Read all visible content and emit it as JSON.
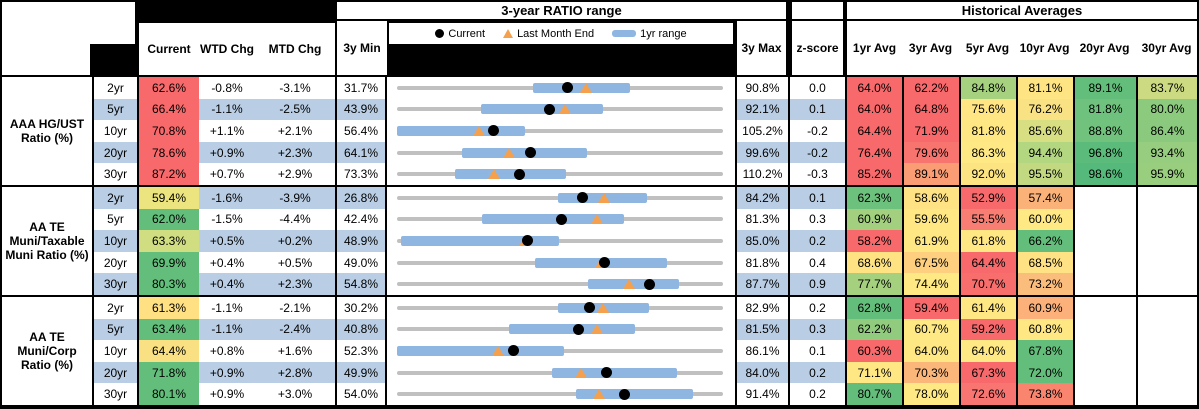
{
  "header": {
    "range_title": "3-year RATIO range",
    "hist_title": "Historical Averages",
    "columns": {
      "current": "Current",
      "wtd": "WTD Chg",
      "mtd": "MTD Chg",
      "min": "3y Min",
      "max": "3y Max",
      "z": "z-score"
    },
    "avg_columns": [
      "1yr Avg",
      "3yr Avg",
      "5yr Avg",
      "10yr Avg",
      "20yr Avg",
      "30yr Avg"
    ],
    "legend": {
      "current": "Current",
      "last_month_end": "Last Month End",
      "one_year_range": "1yr range"
    }
  },
  "colors": {
    "stripe_blue": "#B9CDE4",
    "range_bar_blue": "#8FB5E1",
    "track_gray": "#C0C0C0",
    "triangle_orange": "#F5A04D",
    "dot_black": "#000000",
    "heat_red": "#F8696B",
    "heat_yellow": "#FFE984",
    "heat_green": "#63BE7B"
  },
  "chart_data": {
    "type": "table",
    "title": "3-year RATIO range",
    "sections": [
      {
        "label": "AAA HG/UST Ratio (%)",
        "rows": [
          {
            "tenor": "2yr",
            "current": "62.6%",
            "current_bg": "#F8696B",
            "wtd": "-0.8%",
            "mtd": "-3.1%",
            "min": "31.7%",
            "max": "90.8%",
            "z": "0.0",
            "range": {
              "min": 31.7,
              "max": 90.8,
              "current": 62.6,
              "last_month_end": 65.9,
              "yr1_low": 56.3,
              "yr1_high": 73.9
            },
            "avgs": [
              {
                "v": "64.0%",
                "bg": "#F8696B"
              },
              {
                "v": "62.2%",
                "bg": "#F8696B"
              },
              {
                "v": "84.8%",
                "bg": "#A6D27F"
              },
              {
                "v": "81.1%",
                "bg": "#FFE483"
              },
              {
                "v": "89.1%",
                "bg": "#63BE7B"
              },
              {
                "v": "83.7%",
                "bg": "#CCDB81"
              }
            ]
          },
          {
            "tenor": "5yr",
            "current": "66.4%",
            "current_bg": "#F8696B",
            "wtd": "-1.1%",
            "mtd": "-2.5%",
            "min": "43.9%",
            "max": "92.1%",
            "z": "0.1",
            "range": {
              "min": 43.9,
              "max": 92.1,
              "current": 66.4,
              "last_month_end": 68.7,
              "yr1_low": 56.3,
              "yr1_high": 74.3
            },
            "avgs": [
              {
                "v": "64.0%",
                "bg": "#F8696B"
              },
              {
                "v": "64.8%",
                "bg": "#F8696B"
              },
              {
                "v": "75.6%",
                "bg": "#FFE584"
              },
              {
                "v": "76.2%",
                "bg": "#F9E283"
              },
              {
                "v": "81.8%",
                "bg": "#6EC27D"
              },
              {
                "v": "80.0%",
                "bg": "#8CCA7E"
              }
            ]
          },
          {
            "tenor": "10yr",
            "current": "70.8%",
            "current_bg": "#F8696B",
            "wtd": "+1.1%",
            "mtd": "+2.1%",
            "min": "56.4%",
            "max": "105.2%",
            "z": "-0.2",
            "range": {
              "min": 56.4,
              "max": 105.2,
              "current": 70.8,
              "last_month_end": 68.7,
              "yr1_low": 56.4,
              "yr1_high": 75.5
            },
            "avgs": [
              {
                "v": "64.4%",
                "bg": "#F8696B"
              },
              {
                "v": "71.9%",
                "bg": "#F8696B"
              },
              {
                "v": "81.8%",
                "bg": "#FFE784"
              },
              {
                "v": "85.6%",
                "bg": "#D8DE82"
              },
              {
                "v": "88.8%",
                "bg": "#70C27D"
              },
              {
                "v": "86.4%",
                "bg": "#8BCA7E"
              }
            ]
          },
          {
            "tenor": "20yr",
            "current": "78.6%",
            "current_bg": "#F8696B",
            "wtd": "+0.9%",
            "mtd": "+2.3%",
            "min": "64.1%",
            "max": "99.6%",
            "z": "-0.2",
            "range": {
              "min": 64.1,
              "max": 99.6,
              "current": 78.6,
              "last_month_end": 76.3,
              "yr1_low": 71.2,
              "yr1_high": 84.8
            },
            "avgs": [
              {
                "v": "76.4%",
                "bg": "#F8696B"
              },
              {
                "v": "79.6%",
                "bg": "#F8756F"
              },
              {
                "v": "86.3%",
                "bg": "#FFE984"
              },
              {
                "v": "94.4%",
                "bg": "#B3D680"
              },
              {
                "v": "96.8%",
                "bg": "#5BBB7A"
              },
              {
                "v": "93.4%",
                "bg": "#97CD7F"
              }
            ]
          },
          {
            "tenor": "30yr",
            "current": "87.2%",
            "current_bg": "#F8696B",
            "wtd": "+0.7%",
            "mtd": "+2.9%",
            "min": "73.3%",
            "max": "110.2%",
            "z": "-0.3",
            "range": {
              "min": 73.3,
              "max": 110.2,
              "current": 87.2,
              "last_month_end": 84.3,
              "yr1_low": 79.9,
              "yr1_high": 92.4
            },
            "avgs": [
              {
                "v": "85.2%",
                "bg": "#F8696B"
              },
              {
                "v": "89.1%",
                "bg": "#FA9D74"
              },
              {
                "v": "92.0%",
                "bg": "#FDE483"
              },
              {
                "v": "95.5%",
                "bg": "#C3D981"
              },
              {
                "v": "98.6%",
                "bg": "#54B97A"
              },
              {
                "v": "95.9%",
                "bg": "#9ACE7F"
              }
            ]
          }
        ]
      },
      {
        "label": "AA TE Muni/Taxable Muni Ratio (%)",
        "rows": [
          {
            "tenor": "2yr",
            "current": "59.4%",
            "current_bg": "#EBE47F",
            "wtd": "-1.6%",
            "mtd": "-3.9%",
            "min": "26.8%",
            "max": "84.2%",
            "z": "0.1",
            "range": {
              "min": 26.8,
              "max": 84.2,
              "current": 59.4,
              "last_month_end": 63.3,
              "yr1_low": 55.2,
              "yr1_high": 70.9
            },
            "avgs": [
              {
                "v": "62.3%",
                "bg": "#6CC17C"
              },
              {
                "v": "58.6%",
                "bg": "#FFE283"
              },
              {
                "v": "52.9%",
                "bg": "#F8696B"
              },
              {
                "v": "57.4%",
                "bg": "#FBB279"
              },
              {
                "v": "",
                "bg": "#FFFFFF"
              },
              {
                "v": "",
                "bg": "#FFFFFF"
              }
            ]
          },
          {
            "tenor": "5yr",
            "current": "62.0%",
            "current_bg": "#63BE7B",
            "wtd": "-1.5%",
            "mtd": "-4.4%",
            "min": "42.4%",
            "max": "81.3%",
            "z": "0.3",
            "range": {
              "min": 42.4,
              "max": 81.3,
              "current": 62.0,
              "last_month_end": 66.3,
              "yr1_low": 52.5,
              "yr1_high": 69.5
            },
            "avgs": [
              {
                "v": "60.9%",
                "bg": "#A2D07F"
              },
              {
                "v": "59.6%",
                "bg": "#FFE884"
              },
              {
                "v": "55.5%",
                "bg": "#F87D72"
              },
              {
                "v": "60.0%",
                "bg": "#FFE984"
              },
              {
                "v": "",
                "bg": "#FFFFFF"
              },
              {
                "v": "",
                "bg": "#FFFFFF"
              }
            ]
          },
          {
            "tenor": "10yr",
            "current": "63.3%",
            "current_bg": "#D1DD81",
            "wtd": "+0.5%",
            "mtd": "+0.2%",
            "min": "48.9%",
            "max": "85.0%",
            "z": "0.2",
            "range": {
              "min": 48.9,
              "max": 85.0,
              "current": 63.3,
              "last_month_end": 63.1,
              "yr1_low": 49.3,
              "yr1_high": 66.8
            },
            "avgs": [
              {
                "v": "58.2%",
                "bg": "#F8696B"
              },
              {
                "v": "61.9%",
                "bg": "#FFE784"
              },
              {
                "v": "61.8%",
                "bg": "#FFE784"
              },
              {
                "v": "66.2%",
                "bg": "#63BE7B"
              },
              {
                "v": "",
                "bg": "#FFFFFF"
              },
              {
                "v": "",
                "bg": "#FFFFFF"
              }
            ]
          },
          {
            "tenor": "20yr",
            "current": "69.9%",
            "current_bg": "#63BE7B",
            "wtd": "+0.4%",
            "mtd": "+0.5%",
            "min": "49.0%",
            "max": "81.8%",
            "z": "0.4",
            "range": {
              "min": 49.0,
              "max": 81.8,
              "current": 69.9,
              "last_month_end": 69.5,
              "yr1_low": 62.9,
              "yr1_high": 76.2
            },
            "avgs": [
              {
                "v": "68.6%",
                "bg": "#FFE383"
              },
              {
                "v": "67.5%",
                "bg": "#FDCF7E"
              },
              {
                "v": "64.4%",
                "bg": "#F8696B"
              },
              {
                "v": "68.5%",
                "bg": "#FFE283"
              },
              {
                "v": "",
                "bg": "#FFFFFF"
              },
              {
                "v": "",
                "bg": "#FFFFFF"
              }
            ]
          },
          {
            "tenor": "30yr",
            "current": "80.3%",
            "current_bg": "#63BE7B",
            "wtd": "+0.4%",
            "mtd": "+2.3%",
            "min": "54.8%",
            "max": "87.7%",
            "z": "0.9",
            "range": {
              "min": 54.8,
              "max": 87.7,
              "current": 80.3,
              "last_month_end": 78.2,
              "yr1_low": 74.1,
              "yr1_high": 83.3
            },
            "avgs": [
              {
                "v": "77.7%",
                "bg": "#A5D17F"
              },
              {
                "v": "74.4%",
                "bg": "#FFE984"
              },
              {
                "v": "70.7%",
                "bg": "#F86E6C"
              },
              {
                "v": "73.2%",
                "bg": "#FBBD7B"
              },
              {
                "v": "",
                "bg": "#FFFFFF"
              },
              {
                "v": "",
                "bg": "#FFFFFF"
              }
            ]
          }
        ]
      },
      {
        "label": "AA TE Muni/Corp Ratio (%)",
        "rows": [
          {
            "tenor": "2yr",
            "current": "61.3%",
            "current_bg": "#FFE083",
            "wtd": "-1.1%",
            "mtd": "-2.1%",
            "min": "30.2%",
            "max": "82.9%",
            "z": "0.2",
            "range": {
              "min": 30.2,
              "max": 82.9,
              "current": 61.3,
              "last_month_end": 63.5,
              "yr1_low": 56.3,
              "yr1_high": 70.9
            },
            "avgs": [
              {
                "v": "62.8%",
                "bg": "#63BE7B"
              },
              {
                "v": "59.4%",
                "bg": "#F8696B"
              },
              {
                "v": "61.4%",
                "bg": "#FFE784"
              },
              {
                "v": "60.9%",
                "bg": "#FBB179"
              },
              {
                "v": "",
                "bg": "#FFFFFF"
              },
              {
                "v": "",
                "bg": "#FFFFFF"
              }
            ]
          },
          {
            "tenor": "5yr",
            "current": "63.4%",
            "current_bg": "#63BE7B",
            "wtd": "-1.1%",
            "mtd": "-2.4%",
            "min": "40.8%",
            "max": "81.5%",
            "z": "0.3",
            "range": {
              "min": 40.8,
              "max": 81.5,
              "current": 63.4,
              "last_month_end": 65.8,
              "yr1_low": 54.8,
              "yr1_high": 70.5
            },
            "avgs": [
              {
                "v": "62.2%",
                "bg": "#90CB7E"
              },
              {
                "v": "60.7%",
                "bg": "#FFE984"
              },
              {
                "v": "59.2%",
                "bg": "#F8696B"
              },
              {
                "v": "60.8%",
                "bg": "#FFE784"
              },
              {
                "v": "",
                "bg": "#FFFFFF"
              },
              {
                "v": "",
                "bg": "#FFFFFF"
              }
            ]
          },
          {
            "tenor": "10yr",
            "current": "64.4%",
            "current_bg": "#F9E183",
            "wtd": "+0.8%",
            "mtd": "+1.6%",
            "min": "52.3%",
            "max": "86.1%",
            "z": "0.1",
            "range": {
              "min": 52.3,
              "max": 86.1,
              "current": 64.4,
              "last_month_end": 62.8,
              "yr1_low": 52.3,
              "yr1_high": 69.6
            },
            "avgs": [
              {
                "v": "60.3%",
                "bg": "#F8696B"
              },
              {
                "v": "64.0%",
                "bg": "#FFE784"
              },
              {
                "v": "64.0%",
                "bg": "#FFE984"
              },
              {
                "v": "67.8%",
                "bg": "#63BE7B"
              },
              {
                "v": "",
                "bg": "#FFFFFF"
              },
              {
                "v": "",
                "bg": "#FFFFFF"
              }
            ]
          },
          {
            "tenor": "20yr",
            "current": "71.8%",
            "current_bg": "#63BE7B",
            "wtd": "+0.9%",
            "mtd": "+2.8%",
            "min": "49.9%",
            "max": "84.0%",
            "z": "0.2",
            "range": {
              "min": 49.9,
              "max": 84.0,
              "current": 71.8,
              "last_month_end": 69.1,
              "yr1_low": 66.1,
              "yr1_high": 79.2
            },
            "avgs": [
              {
                "v": "71.1%",
                "bg": "#FFE884"
              },
              {
                "v": "70.3%",
                "bg": "#FBB77A"
              },
              {
                "v": "67.3%",
                "bg": "#F8696B"
              },
              {
                "v": "72.0%",
                "bg": "#63BE7B"
              },
              {
                "v": "",
                "bg": "#FFFFFF"
              },
              {
                "v": "",
                "bg": "#FFFFFF"
              }
            ]
          },
          {
            "tenor": "30yr",
            "current": "80.1%",
            "current_bg": "#63BE7B",
            "wtd": "+0.9%",
            "mtd": "+3.0%",
            "min": "54.0%",
            "max": "91.4%",
            "z": "0.2",
            "range": {
              "min": 54.0,
              "max": 91.4,
              "current": 80.1,
              "last_month_end": 77.2,
              "yr1_low": 74.5,
              "yr1_high": 88.0
            },
            "avgs": [
              {
                "v": "80.7%",
                "bg": "#63BE7B"
              },
              {
                "v": "78.0%",
                "bg": "#FFE984"
              },
              {
                "v": "72.6%",
                "bg": "#F87572"
              },
              {
                "v": "73.8%",
                "bg": "#F9856F"
              },
              {
                "v": "",
                "bg": "#FFFFFF"
              },
              {
                "v": "",
                "bg": "#FFFFFF"
              }
            ]
          }
        ]
      }
    ]
  }
}
